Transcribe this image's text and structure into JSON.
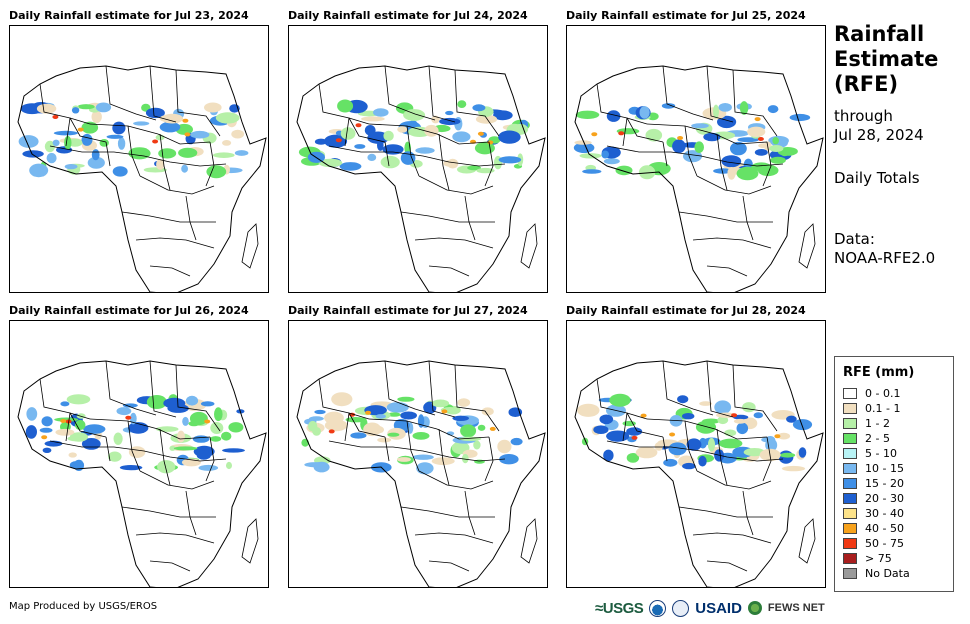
{
  "panels": [
    {
      "title": "Daily Rainfall estimate for Jul 23, 2024"
    },
    {
      "title": "Daily Rainfall estimate for Jul 24, 2024"
    },
    {
      "title": "Daily Rainfall estimate for Jul 25, 2024"
    },
    {
      "title": "Daily Rainfall estimate for Jul 26, 2024"
    },
    {
      "title": "Daily Rainfall estimate for Jul 27, 2024"
    },
    {
      "title": "Daily Rainfall estimate for Jul 28, 2024"
    }
  ],
  "sidebar": {
    "main_title": "Rainfall\nEstimate\n(RFE)",
    "through": "through\nJul 28, 2024",
    "period": "Daily Totals",
    "data_source": "Data:\nNOAA-RFE2.0"
  },
  "legend": {
    "title": "RFE (mm)",
    "items": [
      {
        "label": "0 - 0.1",
        "color": "#ffffff"
      },
      {
        "label": "0.1 - 1",
        "color": "#f1dfc0"
      },
      {
        "label": "1 - 2",
        "color": "#b6f0a8"
      },
      {
        "label": "2 - 5",
        "color": "#66e266"
      },
      {
        "label": "5 - 10",
        "color": "#b8f3f5"
      },
      {
        "label": "10 - 15",
        "color": "#78b8f0"
      },
      {
        "label": "15 - 20",
        "color": "#3f8fe6"
      },
      {
        "label": "20 - 30",
        "color": "#1e5fd0"
      },
      {
        "label": "30 - 40",
        "color": "#fde38a"
      },
      {
        "label": "40 - 50",
        "color": "#f7a21c"
      },
      {
        "label": "50 - 75",
        "color": "#f03a14"
      },
      {
        "label": "> 75",
        "color": "#a81e1e"
      },
      {
        "label": "No Data",
        "color": "#9a9a9a"
      }
    ]
  },
  "footer": {
    "credit": "Map Produced by USGS/EROS",
    "logos": {
      "usgs": "≈USGS",
      "usaid": "USAID",
      "fews": "FEWS NET"
    }
  }
}
